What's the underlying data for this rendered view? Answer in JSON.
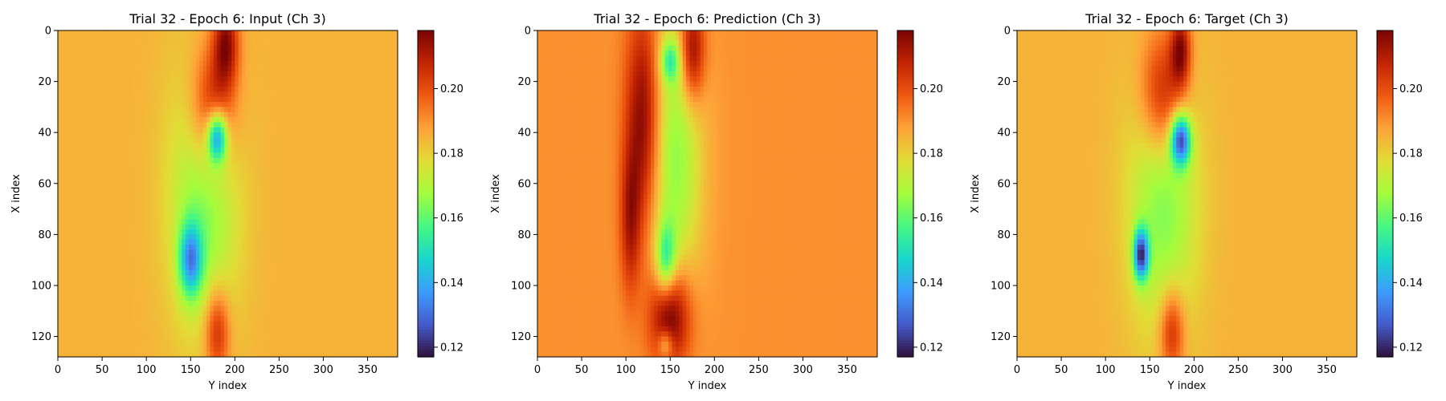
{
  "chart_data": [
    {
      "type": "heatmap",
      "title": "Trial 32 - Epoch 6: Input (Ch 3)",
      "xlabel": "Y index",
      "ylabel": "X index",
      "xlim": [
        0,
        384
      ],
      "ylim": [
        128,
        0
      ],
      "xticks": [
        0,
        50,
        100,
        150,
        200,
        250,
        300,
        350
      ],
      "yticks": [
        0,
        20,
        40,
        60,
        80,
        100,
        120
      ],
      "colormap": "turbo",
      "colorbar": {
        "min": 0.117,
        "max": 0.218,
        "ticks": [
          0.12,
          0.14,
          0.16,
          0.18,
          0.2
        ],
        "tick_labels": [
          "0.12",
          "0.14",
          "0.16",
          "0.18",
          "0.20"
        ]
      },
      "background_value": 0.185,
      "features": [
        {
          "kind": "high",
          "cx": 175,
          "cy": 30,
          "sx": 18,
          "sy": 18,
          "a": 0.03
        },
        {
          "kind": "high",
          "cx": 190,
          "cy": 5,
          "sx": 10,
          "sy": 12,
          "a": 0.03
        },
        {
          "kind": "high",
          "cx": 180,
          "cy": 118,
          "sx": 10,
          "sy": 12,
          "a": 0.025
        },
        {
          "kind": "low",
          "cx": 180,
          "cy": 42,
          "sx": 8,
          "sy": 7,
          "a": 0.05
        },
        {
          "kind": "low",
          "cx": 150,
          "cy": 90,
          "sx": 9,
          "sy": 10,
          "a": 0.04
        },
        {
          "kind": "low",
          "cx": 165,
          "cy": 65,
          "sx": 28,
          "sy": 38,
          "a": 0.022
        }
      ]
    },
    {
      "type": "heatmap",
      "title": "Trial 32 - Epoch 6: Prediction (Ch 3)",
      "xlabel": "Y index",
      "ylabel": "X index",
      "xlim": [
        0,
        384
      ],
      "ylim": [
        128,
        0
      ],
      "xticks": [
        0,
        50,
        100,
        150,
        200,
        250,
        300,
        350
      ],
      "yticks": [
        0,
        20,
        40,
        60,
        80,
        100,
        120
      ],
      "colormap": "turbo",
      "colorbar": {
        "min": 0.117,
        "max": 0.218,
        "ticks": [
          0.12,
          0.14,
          0.16,
          0.18,
          0.2
        ],
        "tick_labels": [
          "0.12",
          "0.14",
          "0.16",
          "0.18",
          "0.20"
        ]
      },
      "background_value": 0.19,
      "features": [
        {
          "kind": "high",
          "cx": 120,
          "cy": 35,
          "sx": 14,
          "sy": 30,
          "a": 0.03
        },
        {
          "kind": "high",
          "cx": 175,
          "cy": 8,
          "sx": 10,
          "sy": 14,
          "a": 0.03
        },
        {
          "kind": "high",
          "cx": 150,
          "cy": 112,
          "sx": 16,
          "sy": 14,
          "a": 0.035
        },
        {
          "kind": "high",
          "cx": 105,
          "cy": 75,
          "sx": 8,
          "sy": 20,
          "a": 0.02
        },
        {
          "kind": "low",
          "cx": 155,
          "cy": 50,
          "sx": 22,
          "sy": 40,
          "a": 0.025
        },
        {
          "kind": "low",
          "cx": 145,
          "cy": 90,
          "sx": 8,
          "sy": 10,
          "a": 0.03
        },
        {
          "kind": "low",
          "cx": 150,
          "cy": 12,
          "sx": 8,
          "sy": 6,
          "a": 0.025
        },
        {
          "kind": "low",
          "cx": 145,
          "cy": 123,
          "sx": 6,
          "sy": 4,
          "a": 0.02
        }
      ]
    },
    {
      "type": "heatmap",
      "title": "Trial 32 - Epoch 6: Target (Ch 3)",
      "xlabel": "Y index",
      "ylabel": "X index",
      "xlim": [
        0,
        384
      ],
      "ylim": [
        128,
        0
      ],
      "xticks": [
        0,
        50,
        100,
        150,
        200,
        250,
        300,
        350
      ],
      "yticks": [
        0,
        20,
        40,
        60,
        80,
        100,
        120
      ],
      "colormap": "turbo",
      "colorbar": {
        "min": 0.117,
        "max": 0.218,
        "ticks": [
          0.12,
          0.14,
          0.16,
          0.18,
          0.2
        ],
        "tick_labels": [
          "0.12",
          "0.14",
          "0.16",
          "0.18",
          "0.20"
        ]
      },
      "background_value": 0.185,
      "features": [
        {
          "kind": "high",
          "cx": 165,
          "cy": 25,
          "sx": 18,
          "sy": 18,
          "a": 0.03
        },
        {
          "kind": "high",
          "cx": 185,
          "cy": 8,
          "sx": 8,
          "sy": 10,
          "a": 0.03
        },
        {
          "kind": "high",
          "cx": 175,
          "cy": 118,
          "sx": 10,
          "sy": 12,
          "a": 0.025
        },
        {
          "kind": "low",
          "cx": 185,
          "cy": 43,
          "sx": 8,
          "sy": 7,
          "a": 0.055
        },
        {
          "kind": "low",
          "cx": 140,
          "cy": 88,
          "sx": 6,
          "sy": 7,
          "a": 0.055
        },
        {
          "kind": "low",
          "cx": 165,
          "cy": 65,
          "sx": 28,
          "sy": 38,
          "a": 0.022
        }
      ]
    }
  ]
}
